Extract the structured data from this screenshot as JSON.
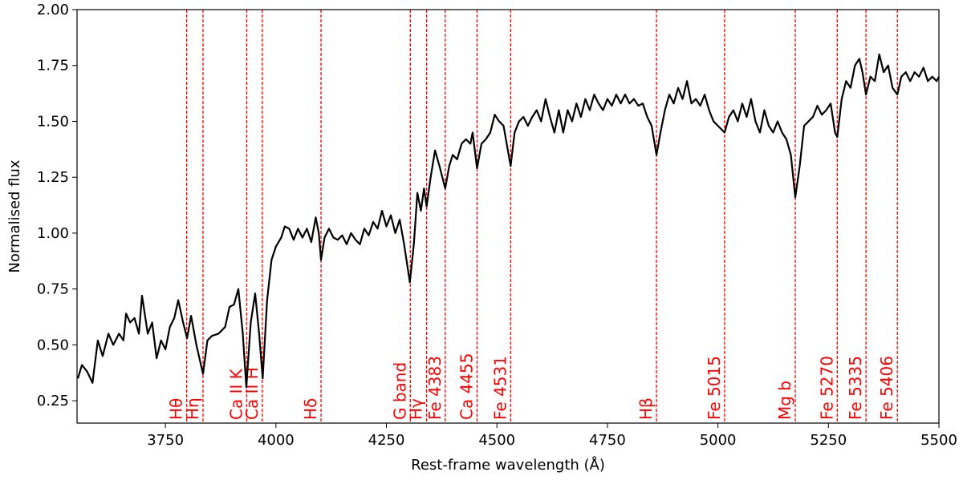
{
  "chart_data": {
    "type": "line",
    "xlabel": "Rest-frame wavelength (Å)",
    "ylabel": "Normalised flux",
    "xlim": [
      3550,
      5500
    ],
    "ylim": [
      0.15,
      2.0
    ],
    "xticks": [
      3750,
      4000,
      4250,
      4500,
      4750,
      5000,
      5250,
      5500
    ],
    "yticks": [
      0.25,
      {
        "value": 0.5,
        "label": "0.50"
      },
      0.75,
      {
        "value": 1,
        "label": "1.00"
      },
      1.25,
      {
        "value": 1.5,
        "label": "1.50"
      },
      1.75,
      {
        "value": 2,
        "label": "2.00"
      }
    ],
    "x": [
      3552,
      3561,
      3573,
      3585,
      3597,
      3608,
      3621,
      3632,
      3645,
      3655,
      3661,
      3670,
      3680,
      3690,
      3697,
      3710,
      3720,
      3730,
      3740,
      3750,
      3760,
      3770,
      3779,
      3790,
      3799,
      3808,
      3820,
      3835,
      3845,
      3855,
      3870,
      3885,
      3895,
      3905,
      3915,
      3925,
      3933,
      3943,
      3953,
      3962,
      3970,
      3980,
      3990,
      4000,
      4012,
      4020,
      4030,
      4040,
      4050,
      4060,
      4070,
      4080,
      4090,
      4097,
      4102,
      4110,
      4120,
      4130,
      4140,
      4150,
      4160,
      4170,
      4180,
      4190,
      4200,
      4210,
      4220,
      4230,
      4240,
      4250,
      4260,
      4270,
      4280,
      4290,
      4303,
      4312,
      4320,
      4328,
      4335,
      4341,
      4350,
      4360,
      4370,
      4383,
      4392,
      4400,
      4410,
      4420,
      4430,
      4440,
      4445,
      4455,
      4465,
      4475,
      4485,
      4495,
      4505,
      4515,
      4531,
      4540,
      4550,
      4560,
      4570,
      4580,
      4590,
      4600,
      4610,
      4620,
      4630,
      4640,
      4650,
      4660,
      4670,
      4680,
      4690,
      4700,
      4710,
      4720,
      4730,
      4740,
      4750,
      4760,
      4770,
      4780,
      4790,
      4800,
      4810,
      4820,
      4830,
      4840,
      4850,
      4861,
      4870,
      4880,
      4890,
      4900,
      4910,
      4920,
      4930,
      4940,
      4950,
      4960,
      4970,
      4980,
      4990,
      5000,
      5015,
      5025,
      5035,
      5045,
      5055,
      5065,
      5075,
      5085,
      5095,
      5105,
      5115,
      5125,
      5135,
      5145,
      5155,
      5165,
      5175,
      5185,
      5195,
      5205,
      5215,
      5225,
      5235,
      5245,
      5255,
      5265,
      5270,
      5280,
      5290,
      5300,
      5310,
      5320,
      5327,
      5335,
      5345,
      5355,
      5365,
      5375,
      5385,
      5395,
      5406,
      5415,
      5425,
      5435,
      5445,
      5455,
      5465,
      5475,
      5485,
      5495,
      5500
    ],
    "series": [
      {
        "color": "#000000",
        "values": [
          0.35,
          0.41,
          0.38,
          0.33,
          0.52,
          0.45,
          0.55,
          0.5,
          0.55,
          0.52,
          0.64,
          0.6,
          0.62,
          0.55,
          0.72,
          0.55,
          0.6,
          0.44,
          0.52,
          0.48,
          0.58,
          0.62,
          0.7,
          0.6,
          0.53,
          0.63,
          0.5,
          0.37,
          0.52,
          0.54,
          0.55,
          0.58,
          0.67,
          0.68,
          0.75,
          0.55,
          0.31,
          0.6,
          0.73,
          0.55,
          0.35,
          0.7,
          0.88,
          0.94,
          0.98,
          1.03,
          1.02,
          0.97,
          1.02,
          0.98,
          1.02,
          0.96,
          1.07,
          1.0,
          0.88,
          0.98,
          1.02,
          0.98,
          0.97,
          0.99,
          0.95,
          1.0,
          0.97,
          0.95,
          1.02,
          0.99,
          1.05,
          1.02,
          1.1,
          1.03,
          1.08,
          1.0,
          1.06,
          0.95,
          0.78,
          0.95,
          1.18,
          1.1,
          1.2,
          1.12,
          1.25,
          1.37,
          1.3,
          1.2,
          1.3,
          1.35,
          1.33,
          1.4,
          1.42,
          1.4,
          1.45,
          1.29,
          1.4,
          1.42,
          1.45,
          1.53,
          1.5,
          1.48,
          1.3,
          1.45,
          1.5,
          1.52,
          1.48,
          1.52,
          1.55,
          1.5,
          1.6,
          1.52,
          1.45,
          1.55,
          1.45,
          1.55,
          1.5,
          1.58,
          1.52,
          1.6,
          1.55,
          1.62,
          1.58,
          1.55,
          1.6,
          1.57,
          1.62,
          1.58,
          1.62,
          1.58,
          1.6,
          1.57,
          1.58,
          1.52,
          1.48,
          1.35,
          1.45,
          1.55,
          1.62,
          1.58,
          1.65,
          1.6,
          1.68,
          1.58,
          1.6,
          1.57,
          1.62,
          1.55,
          1.5,
          1.48,
          1.45,
          1.52,
          1.55,
          1.5,
          1.58,
          1.52,
          1.6,
          1.5,
          1.45,
          1.55,
          1.48,
          1.45,
          1.5,
          1.45,
          1.42,
          1.35,
          1.16,
          1.3,
          1.48,
          1.5,
          1.52,
          1.57,
          1.53,
          1.55,
          1.58,
          1.45,
          1.43,
          1.6,
          1.68,
          1.65,
          1.75,
          1.78,
          1.72,
          1.62,
          1.7,
          1.68,
          1.8,
          1.72,
          1.75,
          1.65,
          1.62,
          1.7,
          1.72,
          1.68,
          1.72,
          1.7,
          1.74,
          1.68,
          1.7,
          1.68,
          1.7
        ]
      }
    ],
    "line_color": "#ff0000",
    "lines": [
      {
        "x": 3798,
        "label": "Hθ"
      },
      {
        "x": 3835,
        "label": "Hη"
      },
      {
        "x": 3934,
        "label": "Ca II K"
      },
      {
        "x": 3969,
        "label": "Ca II H"
      },
      {
        "x": 4102,
        "label": "Hδ"
      },
      {
        "x": 4304,
        "label": "G band"
      },
      {
        "x": 4341,
        "label": "Hγ"
      },
      {
        "x": 4383,
        "label": "Fe 4383"
      },
      {
        "x": 4455,
        "label": "Ca 4455"
      },
      {
        "x": 4531,
        "label": "Fe 4531"
      },
      {
        "x": 4861,
        "label": "Hβ"
      },
      {
        "x": 5015,
        "label": "Fe 5015"
      },
      {
        "x": 5175,
        "label": "Mg b"
      },
      {
        "x": 5270,
        "label": "Fe 5270"
      },
      {
        "x": 5335,
        "label": "Fe 5335"
      },
      {
        "x": 5406,
        "label": "Fe 5406"
      }
    ]
  }
}
